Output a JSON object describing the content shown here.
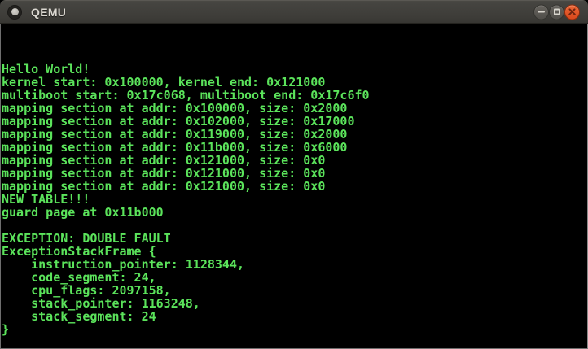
{
  "titlebar": {
    "title": "QEMU"
  },
  "terminal": {
    "lines": [
      "Hello World!",
      "kernel start: 0x100000, kernel end: 0x121000",
      "multiboot start: 0x17c068, multiboot end: 0x17c6f0",
      "mapping section at addr: 0x100000, size: 0x2000",
      "mapping section at addr: 0x102000, size: 0x17000",
      "mapping section at addr: 0x119000, size: 0x2000",
      "mapping section at addr: 0x11b000, size: 0x6000",
      "mapping section at addr: 0x121000, size: 0x0",
      "mapping section at addr: 0x121000, size: 0x0",
      "mapping section at addr: 0x121000, size: 0x0",
      "NEW TABLE!!!",
      "guard page at 0x11b000",
      "",
      "EXCEPTION: DOUBLE FAULT",
      "ExceptionStackFrame {",
      "    instruction_pointer: 1128344,",
      "    code_segment: 24,",
      "    cpu_flags: 2097158,",
      "    stack_pointer: 1163248,",
      "    stack_segment: 24",
      "}"
    ]
  },
  "colors": {
    "terminal-green": "#5be35b",
    "terminal-bg": "#000000",
    "close-top": "#ec6635",
    "close-bottom": "#d9491d"
  }
}
